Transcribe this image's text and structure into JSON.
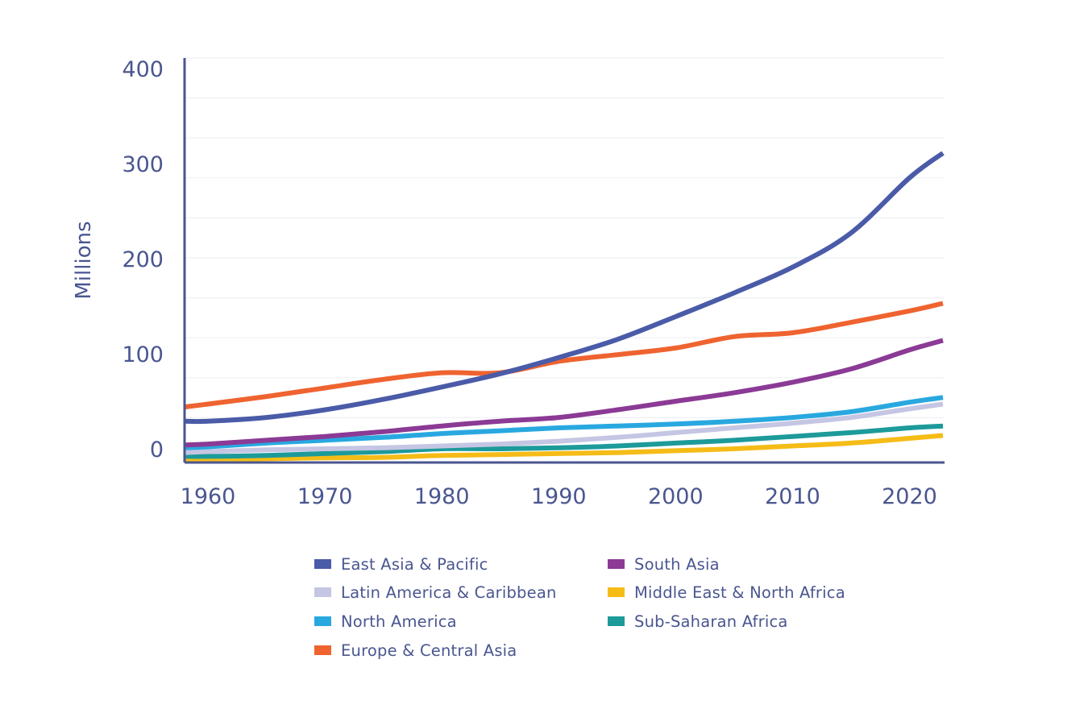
{
  "chart_data": {
    "type": "line",
    "title": "",
    "xlabel": "",
    "ylabel": "Millions",
    "xlim": [
      1958,
      2023
    ],
    "ylim": [
      -14.4,
      411
    ],
    "grid": true,
    "legend_position": "bottom",
    "x_ticks": [
      1960,
      1970,
      1980,
      1990,
      2000,
      2010,
      2020
    ],
    "x_tick_labels": [
      "1960",
      "1970",
      "1980",
      "1990",
      "2000",
      "2010",
      "2020"
    ],
    "y_ticks": [
      0,
      100,
      200,
      300,
      400
    ],
    "y_tick_labels": [
      "0",
      "100",
      "200",
      "300",
      "400"
    ],
    "x": [
      1958,
      1960,
      1965,
      1970,
      1975,
      1980,
      1985,
      1990,
      1995,
      2000,
      2005,
      2010,
      2015,
      2020,
      2023
    ],
    "series": [
      {
        "name": "East Asia & Pacific",
        "color": "#4a5ba8",
        "values": [
          29,
          29,
          33,
          41,
          52,
          65,
          79,
          96,
          115,
          139,
          164,
          191,
          227,
          285,
          311
        ]
      },
      {
        "name": "Europe & Central Asia",
        "color": "#ef6330",
        "values": [
          44,
          47,
          55,
          64,
          73,
          80,
          80,
          92,
          99,
          106,
          118,
          122,
          133,
          145,
          153
        ]
      },
      {
        "name": "South Asia",
        "color": "#8b3a95",
        "values": [
          4,
          5,
          9,
          13,
          18,
          24,
          29,
          33,
          41,
          50,
          59,
          70,
          84,
          104,
          114
        ]
      },
      {
        "name": "North America",
        "color": "#29a8e0",
        "values": [
          1,
          2,
          6,
          9,
          12,
          16,
          19,
          22,
          24,
          26,
          29,
          33,
          39,
          49,
          54
        ]
      },
      {
        "name": "Latin America & Caribbean",
        "color": "#c5c6e4",
        "values": [
          -4,
          -3,
          -1,
          0,
          1,
          3,
          5,
          8,
          12,
          17,
          22,
          27,
          33,
          42,
          47
        ]
      },
      {
        "name": "Sub-Saharan Africa",
        "color": "#1d9a9a",
        "values": [
          -8,
          -8,
          -7,
          -5,
          -3,
          0,
          0,
          1,
          3,
          6,
          9,
          13,
          17,
          22,
          24
        ]
      },
      {
        "name": "Middle East & North Africa",
        "color": "#f5bc17",
        "values": [
          -12,
          -11.5,
          -10.5,
          -9.5,
          -9,
          -7,
          -6,
          -5,
          -4,
          -2,
          0,
          3,
          6,
          11,
          14
        ]
      }
    ]
  },
  "legend": {
    "items": [
      {
        "label": "East Asia & Pacific",
        "color": "#4a5ba8"
      },
      {
        "label": "South Asia",
        "color": "#8b3a95"
      },
      {
        "label": "Latin America & Caribbean",
        "color": "#c5c6e4"
      },
      {
        "label": "Middle East & North Africa",
        "color": "#f5bc17"
      },
      {
        "label": "North America",
        "color": "#29a8e0"
      },
      {
        "label": "Sub-Saharan Africa",
        "color": "#1d9a9a"
      },
      {
        "label": "Europe & Central Asia",
        "color": "#ef6330"
      }
    ]
  },
  "colors": {
    "axis": "#4a5690",
    "grid": "#eef0f4",
    "text": "#4a5690"
  }
}
